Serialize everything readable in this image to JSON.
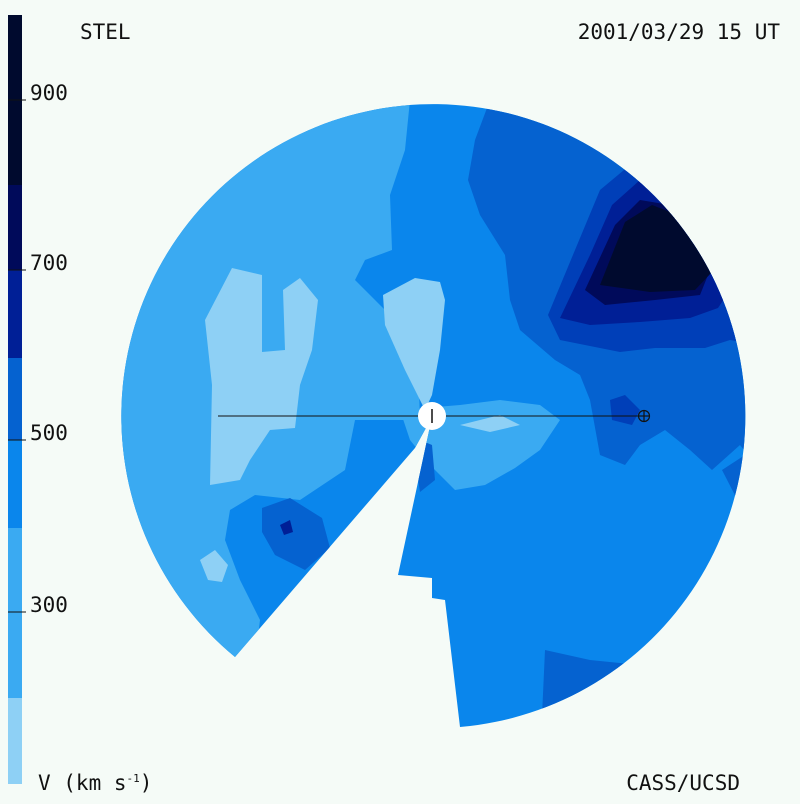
{
  "header": {
    "observatory": "STEL",
    "datetime": "2001/03/29 15 UT"
  },
  "footer": {
    "units_prefix": "V (km s",
    "units_exp": "-1",
    "units_suffix": ")",
    "credit": "CASS/UCSD"
  },
  "colorbar": {
    "tick_labels": [
      "900",
      "700",
      "500",
      "300"
    ],
    "colors": [
      "#8ed0f5",
      "#3aaaf2",
      "#0a86ec",
      "#0562d0",
      "#003fb8",
      "#001f96",
      "#000a5a",
      "#000a2e"
    ]
  },
  "map": {
    "palette": {
      "v200": "#8ed0f5",
      "v300": "#3aaaf2",
      "v400": "#0a86ec",
      "v500": "#0562d0",
      "v600": "#003fb8",
      "v700": "#001f96",
      "v800": "#000a5a",
      "v900": "#000a2e"
    },
    "sun_label": "sun-marker",
    "earth_label": "earth-marker"
  }
}
